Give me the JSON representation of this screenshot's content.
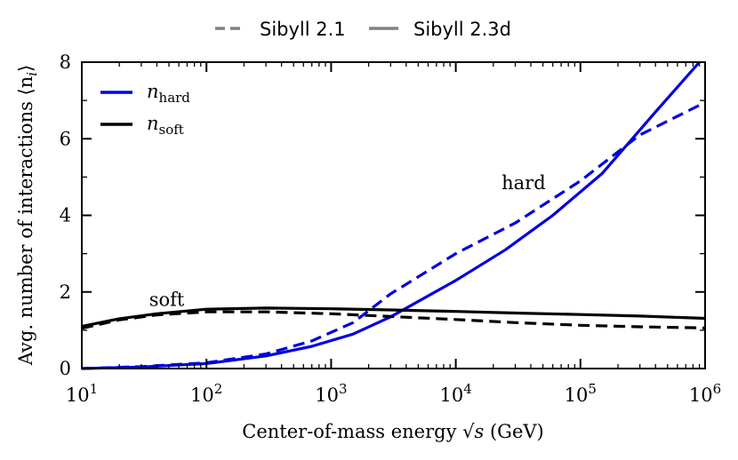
{
  "chart_data": {
    "type": "line",
    "title": "",
    "xlabel_prefix": "Center-of-mass energy ",
    "xlabel_math": "√s",
    "xlabel_suffix": " (GeV)",
    "ylabel": "Avg. number of interactions ⟨n",
    "ylabel_sub": "i",
    "ylabel_end": "⟩",
    "xscale": "log",
    "xlim": [
      10,
      1000000
    ],
    "ylim": [
      0,
      8
    ],
    "x_ticks": [
      {
        "base": "10",
        "exp": "1",
        "value": 10
      },
      {
        "base": "10",
        "exp": "2",
        "value": 100
      },
      {
        "base": "10",
        "exp": "3",
        "value": 1000
      },
      {
        "base": "10",
        "exp": "4",
        "value": 10000
      },
      {
        "base": "10",
        "exp": "5",
        "value": 100000
      },
      {
        "base": "10",
        "exp": "6",
        "value": 1000000
      }
    ],
    "y_ticks": [
      "0",
      "2",
      "4",
      "6",
      "8"
    ],
    "legend_style": {
      "placement": "top-outside",
      "entries": [
        {
          "label": "Sibyll 2.1",
          "dash": "dashed",
          "color": "#808080"
        },
        {
          "label": "Sibyll 2.3d",
          "dash": "solid",
          "color": "#808080"
        }
      ]
    },
    "legend_quantity": {
      "placement": "top-left",
      "entries": [
        {
          "label": "n",
          "sub": "hard",
          "color": "#0000dd"
        },
        {
          "label": "n",
          "sub": "soft",
          "color": "#000000"
        }
      ]
    },
    "annotations": [
      {
        "text": "hard",
        "x": 35000,
        "y": 4.85
      },
      {
        "text": "soft",
        "x": 48,
        "y": 1.8
      }
    ],
    "series": [
      {
        "name": "n_hard Sibyll 2.1",
        "color": "#0000dd",
        "dash": "dashed",
        "x": [
          10,
          30,
          100,
          300,
          700,
          1500,
          3000,
          10000,
          30000,
          100000,
          300000,
          1000000
        ],
        "y": [
          0.0,
          0.05,
          0.15,
          0.38,
          0.72,
          1.2,
          1.95,
          3.0,
          3.8,
          4.9,
          6.1,
          6.95
        ]
      },
      {
        "name": "n_hard Sibyll 2.3d",
        "color": "#0000dd",
        "dash": "solid",
        "x": [
          10,
          30,
          100,
          300,
          700,
          1500,
          3000,
          10000,
          25000,
          60000,
          150000,
          400000,
          900000
        ],
        "y": [
          0.0,
          0.04,
          0.13,
          0.33,
          0.58,
          0.9,
          1.35,
          2.3,
          3.1,
          4.0,
          5.1,
          6.7,
          8.0
        ]
      },
      {
        "name": "n_soft Sibyll 2.1",
        "color": "#000000",
        "dash": "dashed",
        "x": [
          10,
          20,
          40,
          100,
          300,
          1000,
          3000,
          10000,
          30000,
          100000,
          300000,
          1000000
        ],
        "y": [
          1.05,
          1.27,
          1.4,
          1.48,
          1.48,
          1.43,
          1.36,
          1.28,
          1.2,
          1.13,
          1.09,
          1.06
        ]
      },
      {
        "name": "n_soft Sibyll 2.3d",
        "color": "#000000",
        "dash": "solid",
        "x": [
          10,
          20,
          40,
          100,
          300,
          1000,
          3000,
          10000,
          30000,
          100000,
          300000,
          1000000
        ],
        "y": [
          1.1,
          1.3,
          1.43,
          1.55,
          1.58,
          1.56,
          1.53,
          1.49,
          1.45,
          1.41,
          1.37,
          1.31
        ]
      }
    ]
  }
}
